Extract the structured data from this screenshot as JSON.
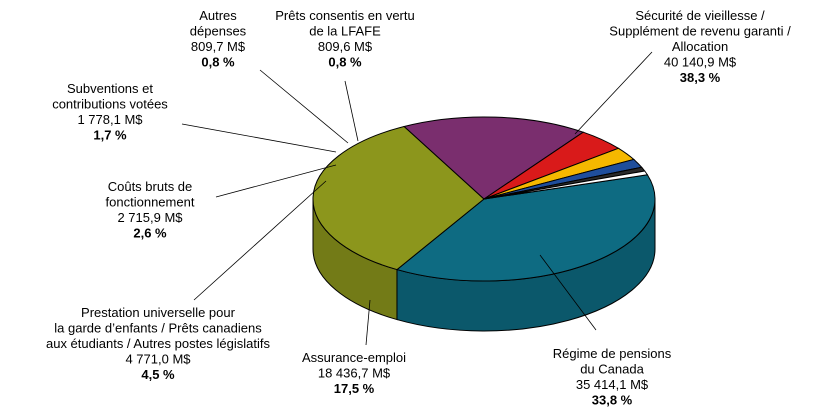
{
  "chart_data": {
    "type": "pie",
    "style": "3d",
    "slices": [
      {
        "label": [
          "Sécurité de vieillesse /",
          "Supplément de revenu garanti /",
          "Allocation"
        ],
        "amount": "40 140,9 M$",
        "value": 40140.9,
        "percent": "38,3 %",
        "color": "#0E6B82"
      },
      {
        "label": [
          "Régime de pensions",
          "du Canada"
        ],
        "amount": "35 414,1 M$",
        "value": 35414.1,
        "percent": "33,8 %",
        "color": "#8C961C"
      },
      {
        "label": [
          "Assurance-emploi"
        ],
        "amount": "18 436,7 M$",
        "value": 18436.7,
        "percent": "17,5 %",
        "color": "#7A2E6E"
      },
      {
        "label": [
          "Prestation universelle pour",
          "la garde d’enfants / Prêts canadiens",
          "aux étudiants / Autres postes législatifs"
        ],
        "amount": "4 771,0 M$",
        "value": 4771.0,
        "percent": "4,5 %",
        "color": "#D91A1A"
      },
      {
        "label": [
          "Coûts bruts de",
          "fonctionnement"
        ],
        "amount": "2 715,9 M$",
        "value": 2715.9,
        "percent": "2,6 %",
        "color": "#F5B800"
      },
      {
        "label": [
          "Subventions et",
          "contributions votées"
        ],
        "amount": "1 778,1 M$",
        "value": 1778.1,
        "percent": "1,7 %",
        "color": "#1F4E9C"
      },
      {
        "label": [
          "Autres",
          "dépenses"
        ],
        "amount": "809,7 M$",
        "value": 809.7,
        "percent": "0,8 %",
        "color": "#2A2A2A"
      },
      {
        "label": [
          "Prêts consentis en vertu",
          "de la LFAFE"
        ],
        "amount": "809,6 M$",
        "value": 809.6,
        "percent": "0,8 %",
        "color": "#FFFFFF"
      }
    ]
  }
}
